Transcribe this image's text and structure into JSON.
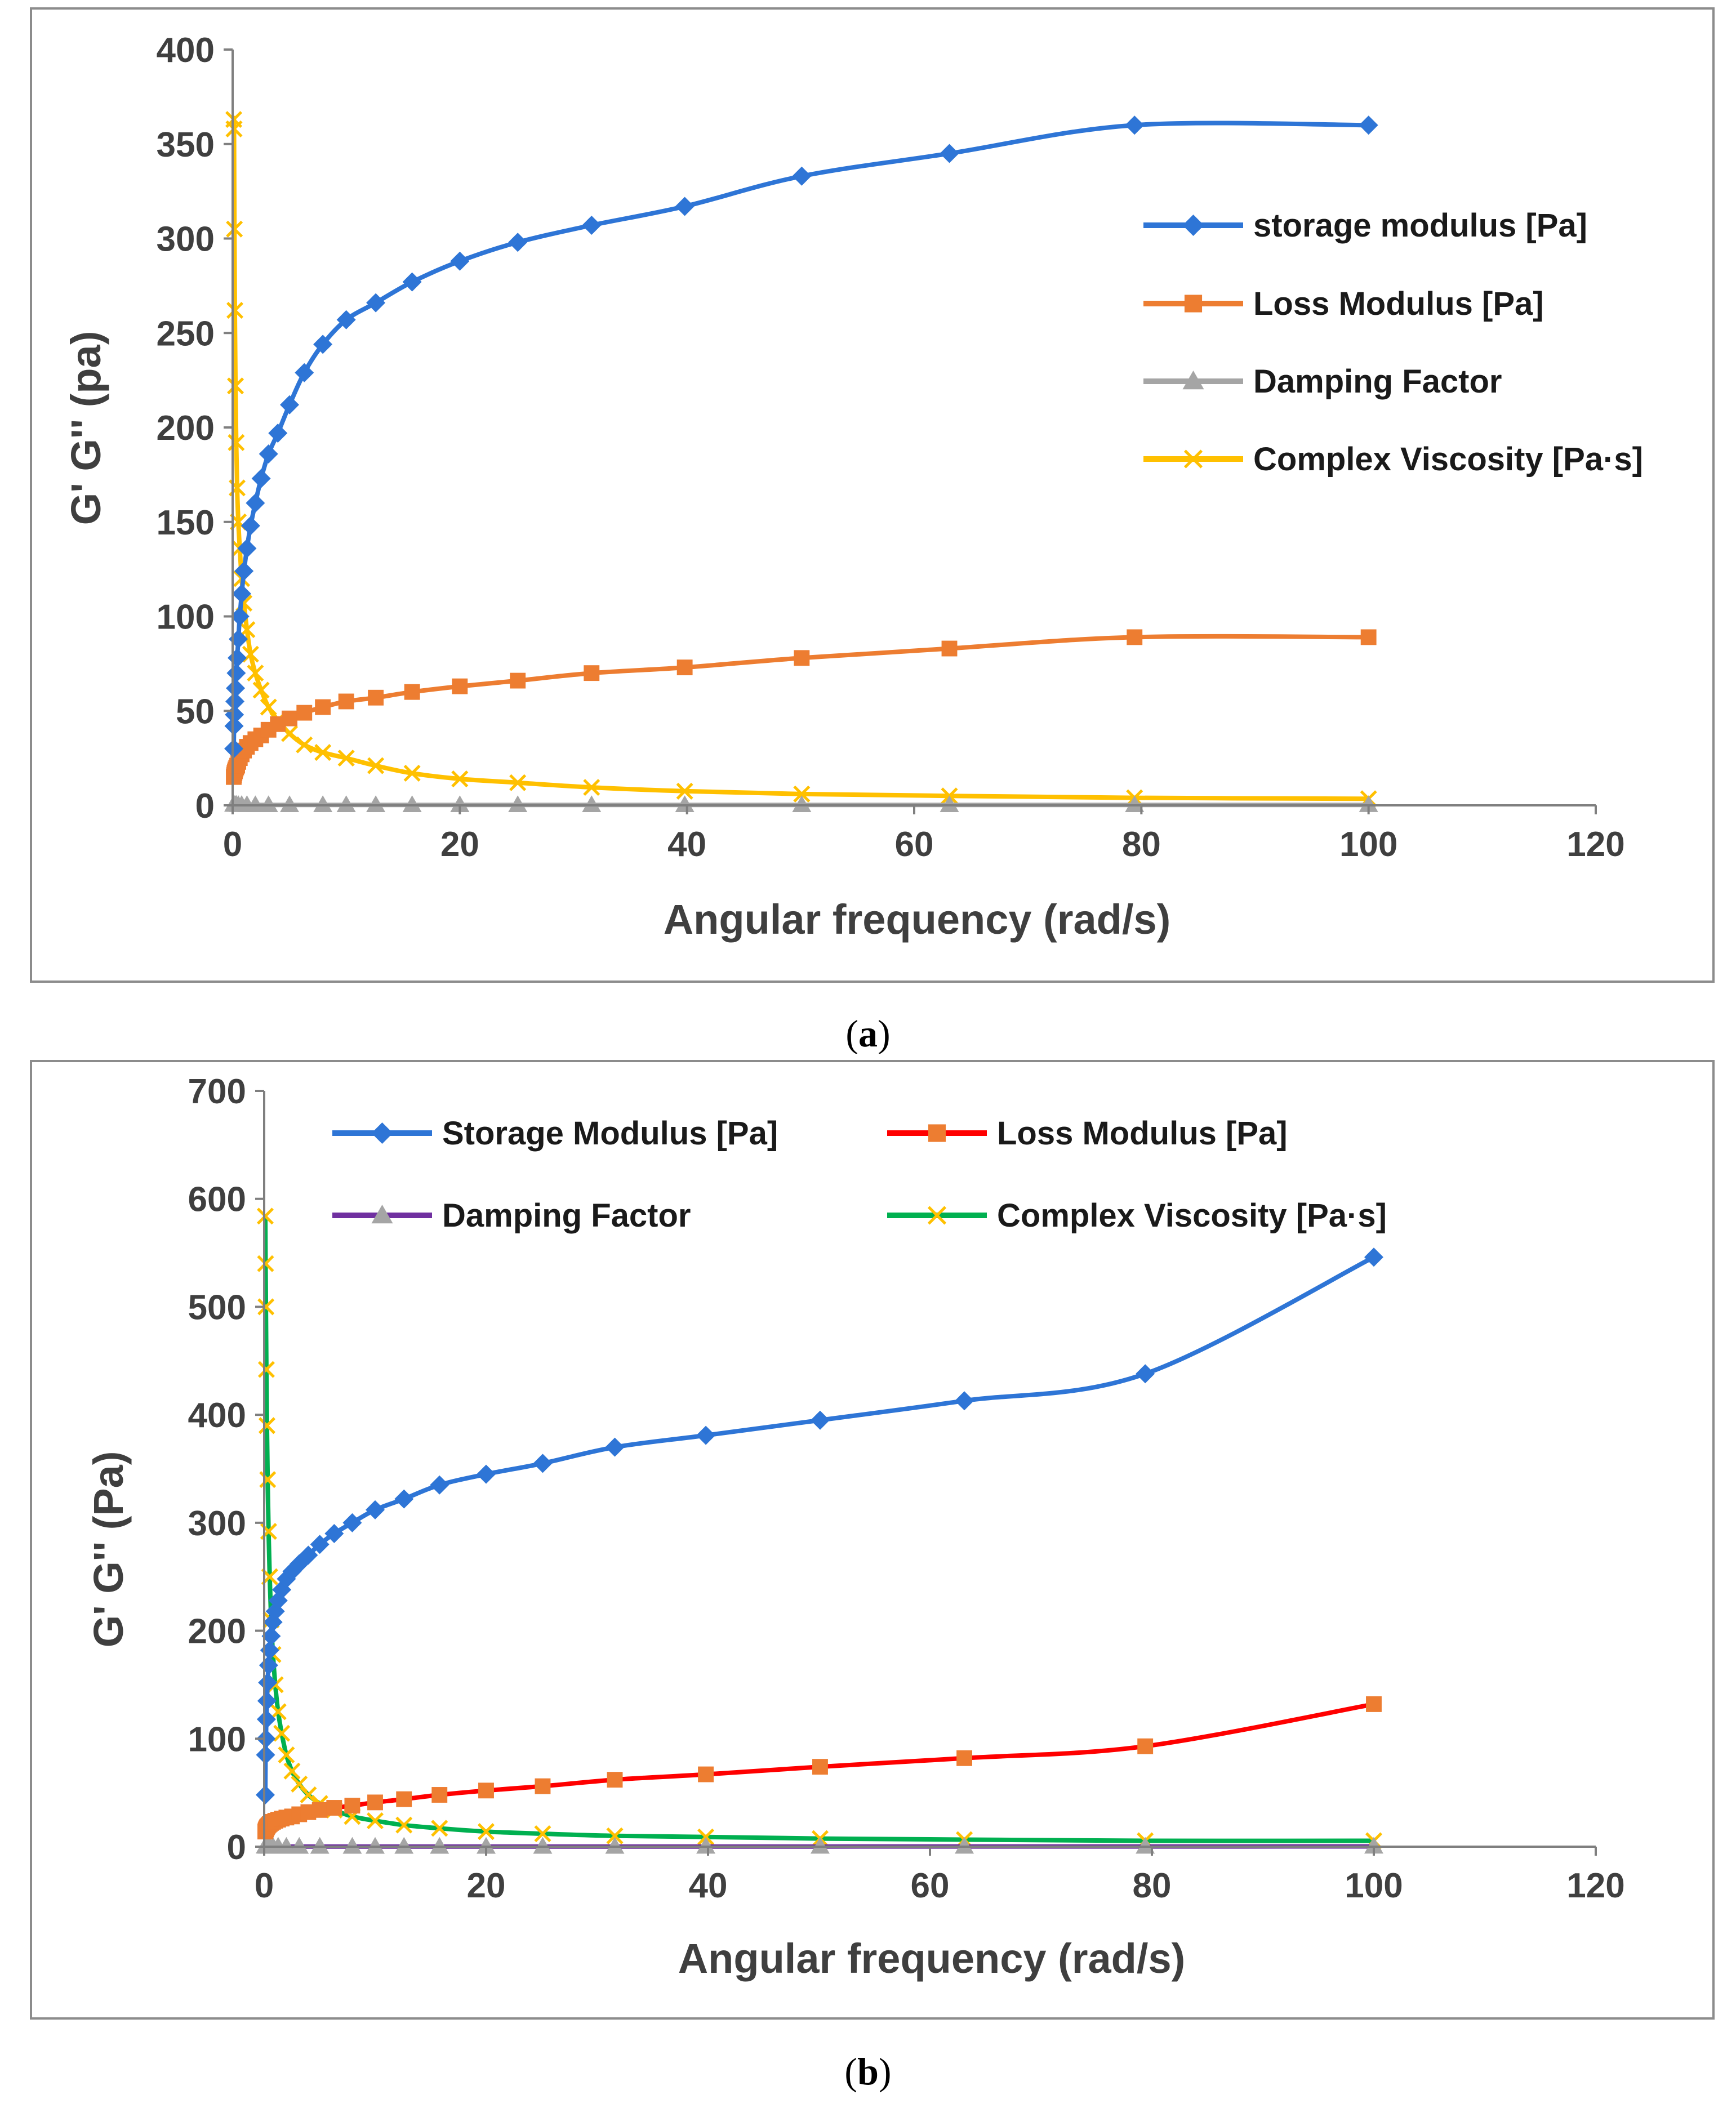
{
  "figure_captions": [
    "(a)",
    "(b)"
  ],
  "chart_data": [
    {
      "type": "line",
      "panel": "a",
      "caption": "(a)",
      "caption_letter": "a",
      "title": "",
      "xlabel": "Angular frequency (rad/s)",
      "ylabel": "G' G'' (pa)",
      "xlim": [
        0,
        120
      ],
      "ylim": [
        0,
        400
      ],
      "xticks": [
        0,
        20,
        40,
        60,
        80,
        100,
        120
      ],
      "yticks": [
        0,
        50,
        100,
        150,
        200,
        250,
        300,
        350,
        400
      ],
      "grid": false,
      "legend_position": "right-middle",
      "legend_columns": 1,
      "series": [
        {
          "name": "storage modulus [Pa]",
          "color": "#2e75d6",
          "marker": "diamond",
          "marker_color": "#2e75d6",
          "x": [
            0.1,
            0.126,
            0.158,
            0.2,
            0.251,
            0.316,
            0.398,
            0.5,
            0.631,
            0.794,
            1.0,
            1.26,
            1.58,
            2.0,
            2.51,
            3.16,
            3.98,
            5.01,
            6.31,
            7.94,
            10.0,
            12.6,
            15.8,
            20.0,
            25.1,
            31.6,
            39.8,
            50.1,
            63.1,
            79.4,
            100.0
          ],
          "values": [
            30,
            42,
            48,
            55,
            62,
            70,
            78,
            88,
            100,
            112,
            124,
            136,
            148,
            160,
            173,
            186,
            197,
            212,
            229,
            244,
            257,
            266,
            277,
            288,
            298,
            307,
            317,
            333,
            345,
            360,
            360
          ]
        },
        {
          "name": "Loss Modulus [Pa]",
          "color": "#ed7d31",
          "marker": "square",
          "marker_color": "#ed7d31",
          "x": [
            0.1,
            0.126,
            0.158,
            0.2,
            0.251,
            0.316,
            0.398,
            0.5,
            0.631,
            0.794,
            1.0,
            1.26,
            1.58,
            2.0,
            2.51,
            3.16,
            3.98,
            5.01,
            6.31,
            7.94,
            10.0,
            12.6,
            15.8,
            20.0,
            25.1,
            31.6,
            39.8,
            50.1,
            63.1,
            79.4,
            100.0
          ],
          "values": [
            15,
            16,
            17,
            18,
            19,
            20,
            21,
            23,
            25,
            27,
            29,
            31,
            33,
            35,
            37,
            40,
            43,
            46,
            49,
            52,
            55,
            57,
            60,
            63,
            66,
            70,
            73,
            78,
            83,
            89,
            89
          ]
        },
        {
          "name": "Damping Factor",
          "color": "#a5a5a5",
          "marker": "triangle",
          "marker_color": "#a5a5a5",
          "x": [
            0.1,
            0.2,
            0.316,
            0.5,
            0.794,
            1.26,
            2.0,
            3.16,
            5.01,
            7.94,
            10.0,
            12.6,
            15.8,
            20.0,
            25.1,
            31.6,
            39.8,
            50.1,
            63.1,
            79.4,
            100.0
          ],
          "values": [
            0.5,
            0.4,
            0.4,
            0.3,
            0.3,
            0.25,
            0.22,
            0.22,
            0.22,
            0.21,
            0.21,
            0.21,
            0.22,
            0.22,
            0.22,
            0.23,
            0.23,
            0.23,
            0.24,
            0.24,
            0.25
          ]
        },
        {
          "name": "Complex Viscosity [Pa·s]",
          "color": "#ffc000",
          "marker": "x",
          "marker_color": "#ffc000",
          "x": [
            0.1,
            0.126,
            0.158,
            0.2,
            0.251,
            0.316,
            0.398,
            0.5,
            0.631,
            0.794,
            1.0,
            1.26,
            1.58,
            2.0,
            2.51,
            3.16,
            3.98,
            5.01,
            6.31,
            7.94,
            10.0,
            12.6,
            15.8,
            20.0,
            25.1,
            31.6,
            39.8,
            50.1,
            63.1,
            79.4,
            100.0
          ],
          "values": [
            363,
            358,
            305,
            262,
            222,
            192,
            168,
            150,
            136,
            120,
            107,
            93,
            80,
            70,
            61,
            52,
            45,
            38,
            32,
            28,
            25,
            21,
            17,
            14,
            12,
            9.5,
            7.5,
            6,
            5,
            4,
            3.5
          ]
        }
      ]
    },
    {
      "type": "line",
      "panel": "b",
      "caption": "(b)",
      "caption_letter": "b",
      "title": "",
      "xlabel": "Angular frequency (rad/s)",
      "ylabel": "G' G'' (Pa)",
      "xlim": [
        0,
        120
      ],
      "ylim": [
        0,
        700
      ],
      "xticks": [
        0,
        20,
        40,
        60,
        80,
        100,
        120
      ],
      "yticks": [
        0,
        100,
        200,
        300,
        400,
        500,
        600,
        700
      ],
      "grid": false,
      "legend_position": "top",
      "legend_columns": 2,
      "series": [
        {
          "name": "Storage Modulus [Pa]",
          "color": "#2e75d6",
          "marker": "diamond",
          "marker_color": "#2e75d6",
          "x": [
            0.1,
            0.126,
            0.158,
            0.2,
            0.251,
            0.316,
            0.398,
            0.5,
            0.631,
            0.794,
            1.0,
            1.26,
            1.58,
            2.0,
            2.51,
            3.16,
            3.98,
            5.01,
            6.31,
            7.94,
            10.0,
            12.6,
            15.8,
            20.0,
            25.1,
            31.6,
            39.8,
            50.1,
            63.1,
            79.4,
            100.0
          ],
          "values": [
            48,
            85,
            100,
            118,
            135,
            152,
            168,
            182,
            195,
            208,
            218,
            228,
            238,
            248,
            255,
            262,
            270,
            280,
            290,
            300,
            312,
            322,
            335,
            345,
            355,
            370,
            381,
            395,
            413,
            438,
            546
          ]
        },
        {
          "name": "Loss Modulus [Pa]",
          "color": "#ff0000",
          "marker": "square",
          "marker_color": "#ed7d31",
          "x": [
            0.1,
            0.126,
            0.158,
            0.2,
            0.251,
            0.316,
            0.398,
            0.5,
            0.631,
            0.794,
            1.0,
            1.26,
            1.58,
            2.0,
            2.51,
            3.16,
            3.98,
            5.01,
            6.31,
            7.94,
            10.0,
            12.6,
            15.8,
            20.0,
            25.1,
            31.6,
            39.8,
            50.1,
            63.1,
            79.4,
            100.0
          ],
          "values": [
            14,
            15,
            16,
            17,
            18,
            19,
            20,
            21,
            22,
            23,
            24,
            25,
            26,
            27,
            28,
            30,
            32,
            34,
            36,
            38,
            41,
            44,
            48,
            52,
            56,
            62,
            67,
            74,
            82,
            93,
            132
          ]
        },
        {
          "name": "Damping Factor",
          "color": "#7030a0",
          "marker": "triangle",
          "marker_color": "#a5a5a5",
          "x": [
            0.1,
            0.2,
            0.316,
            0.5,
            0.794,
            1.26,
            2.0,
            3.16,
            5.01,
            7.94,
            10.0,
            12.6,
            15.8,
            20.0,
            25.1,
            31.6,
            39.8,
            50.1,
            63.1,
            79.4,
            100.0
          ],
          "values": [
            0.3,
            0.25,
            0.22,
            0.2,
            0.18,
            0.17,
            0.16,
            0.15,
            0.14,
            0.14,
            0.13,
            0.13,
            0.14,
            0.15,
            0.15,
            0.16,
            0.17,
            0.18,
            0.19,
            0.21,
            0.24
          ]
        },
        {
          "name": "Complex Viscosity [Pa·s]",
          "color": "#00b050",
          "marker": "x",
          "marker_color": "#ffc000",
          "x": [
            0.1,
            0.126,
            0.158,
            0.2,
            0.251,
            0.316,
            0.398,
            0.5,
            0.631,
            0.794,
            1.0,
            1.26,
            1.58,
            2.0,
            2.51,
            3.16,
            3.98,
            5.01,
            6.31,
            7.94,
            10.0,
            12.6,
            15.8,
            20.0,
            25.1,
            31.6,
            39.8,
            50.1,
            63.1,
            79.4,
            100.0
          ],
          "values": [
            584,
            540,
            500,
            442,
            390,
            340,
            292,
            250,
            210,
            178,
            150,
            125,
            105,
            85,
            70,
            58,
            48,
            40,
            34,
            28,
            24,
            20,
            17,
            14,
            12,
            10,
            9,
            7.5,
            6.5,
            5.5,
            5.5
          ]
        }
      ]
    }
  ]
}
